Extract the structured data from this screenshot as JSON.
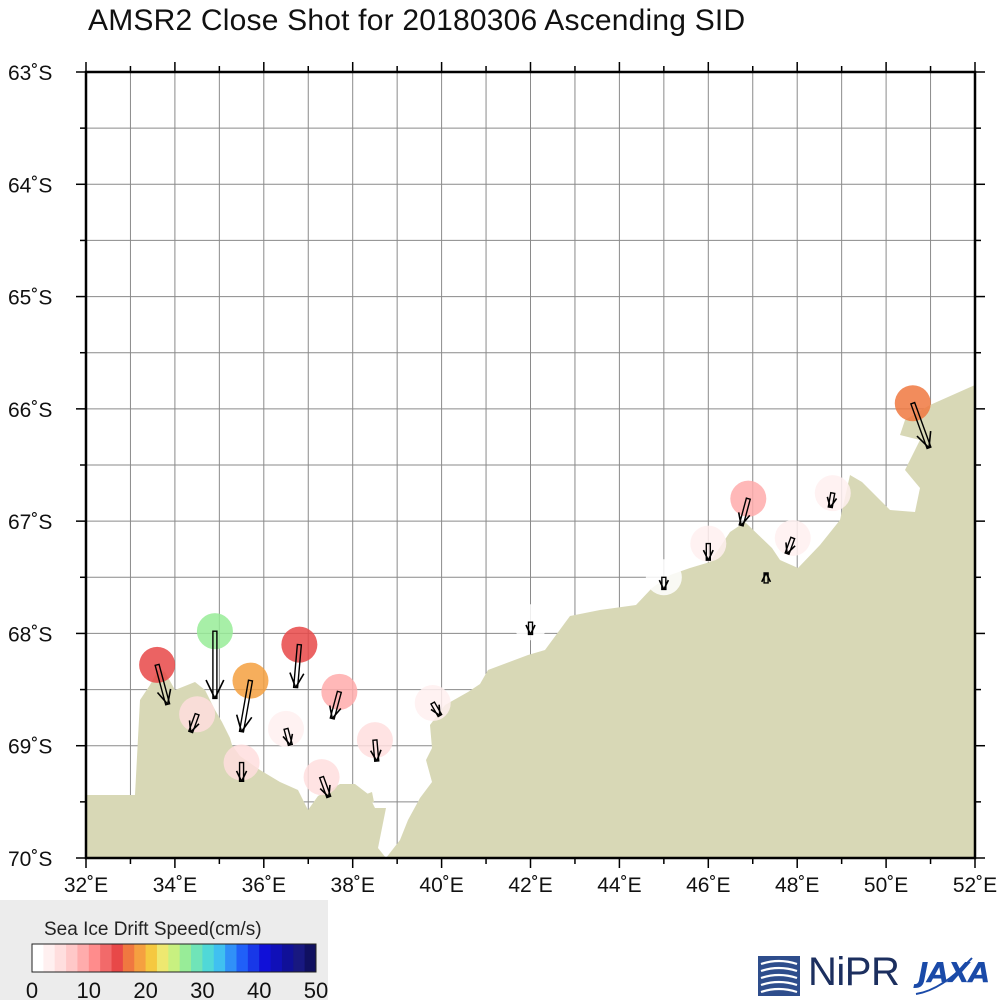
{
  "title": "AMSR2 Close Shot for 20180306 Ascending SID",
  "map": {
    "lon_range": [
      32,
      52
    ],
    "lat_range": [
      -70,
      -63
    ],
    "lon_labels": [
      "32˚E",
      "34˚E",
      "36˚E",
      "38˚E",
      "40˚E",
      "42˚E",
      "44˚E",
      "46˚E",
      "48˚E",
      "50˚E",
      "52˚E"
    ],
    "lat_labels": [
      "63˚S",
      "64˚S",
      "65˚S",
      "66˚S",
      "67˚S",
      "68˚S",
      "69˚S",
      "70˚S"
    ],
    "grid": true,
    "land_color": "#d8d8b6",
    "ocean_color": "#ffffff"
  },
  "drift_vectors": [
    {
      "lon": 50.6,
      "lat": -65.95,
      "speed": 17,
      "dir": 160
    },
    {
      "lon": 48.8,
      "lat": -66.75,
      "speed": 2,
      "dir": 190
    },
    {
      "lon": 46.9,
      "lat": -66.8,
      "speed": 8,
      "dir": 195
    },
    {
      "lon": 47.9,
      "lat": -67.15,
      "speed": 3,
      "dir": 200
    },
    {
      "lon": 46.0,
      "lat": -67.2,
      "speed": 3,
      "dir": 180
    },
    {
      "lon": 45.0,
      "lat": -67.5,
      "speed": 1,
      "dir": 180
    },
    {
      "lon": 47.3,
      "lat": -67.55,
      "speed": 0,
      "dir": 0
    },
    {
      "lon": 42.0,
      "lat": -67.9,
      "speed": 1,
      "dir": 180
    },
    {
      "lon": 34.9,
      "lat": -67.98,
      "speed": 26,
      "dir": 180
    },
    {
      "lon": 36.8,
      "lat": -68.1,
      "speed": 15,
      "dir": 185
    },
    {
      "lon": 33.6,
      "lat": -68.28,
      "speed": 14,
      "dir": 165
    },
    {
      "lon": 35.7,
      "lat": -68.42,
      "speed": 19,
      "dir": 190
    },
    {
      "lon": 37.7,
      "lat": -68.52,
      "speed": 8,
      "dir": 195
    },
    {
      "lon": 39.8,
      "lat": -68.62,
      "speed": 2,
      "dir": 150
    },
    {
      "lon": 34.5,
      "lat": -68.72,
      "speed": 4,
      "dir": 200
    },
    {
      "lon": 36.5,
      "lat": -68.85,
      "speed": 3,
      "dir": 165
    },
    {
      "lon": 38.5,
      "lat": -68.95,
      "speed": 5,
      "dir": 175
    },
    {
      "lon": 35.5,
      "lat": -69.15,
      "speed": 4,
      "dir": 180
    },
    {
      "lon": 37.3,
      "lat": -69.28,
      "speed": 5,
      "dir": 160
    }
  ],
  "colorbar": {
    "title": "Sea Ice Drift Speed(cm/s)",
    "min": 0,
    "max": 50,
    "tick_labels": [
      "0",
      "10",
      "20",
      "30",
      "40",
      "50"
    ],
    "colors": [
      "#ffffff",
      "#fff0f0",
      "#ffdede",
      "#ffc8c8",
      "#ffacac",
      "#ff8c8c",
      "#f26a6a",
      "#e84848",
      "#f07840",
      "#f5a040",
      "#f5c840",
      "#eee870",
      "#c8f080",
      "#98ec98",
      "#70e4b8",
      "#50d8d8",
      "#40c0f0",
      "#3090f8",
      "#2060f8",
      "#1838e8",
      "#1010d8",
      "#1010b8",
      "#101098",
      "#181880",
      "#101060"
    ]
  },
  "logos": {
    "nipr": "NiPR",
    "jaxa": "JAXA"
  }
}
